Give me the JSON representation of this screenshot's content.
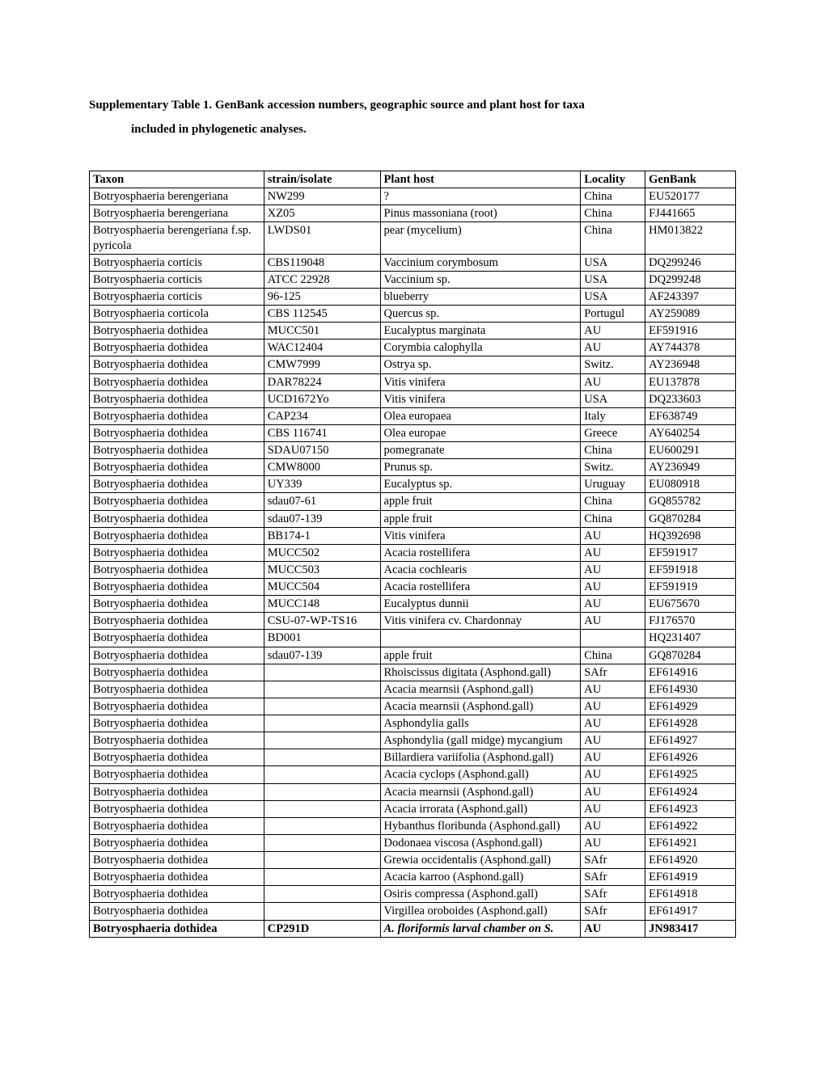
{
  "title_line1": "Supplementary Table 1. GenBank accession numbers, geographic source and plant host for taxa",
  "title_line2": "included in phylogenetic analyses.",
  "headers": {
    "taxon": "Taxon",
    "strain": "strain/isolate",
    "host": "Plant host",
    "locality": "Locality",
    "genbank": "GenBank"
  },
  "rows": [
    {
      "taxon": "Botryosphaeria berengeriana",
      "strain": "NW299",
      "host": "?",
      "locality": "China",
      "genbank": "EU520177"
    },
    {
      "taxon": "Botryosphaeria berengeriana",
      "strain": "XZ05",
      "host": "Pinus massoniana (root)",
      "locality": "China",
      "genbank": "FJ441665"
    },
    {
      "taxon": "Botryosphaeria berengeriana f.sp. pyricola",
      "strain": "LWDS01",
      "host": "pear (mycelium)",
      "locality": "China",
      "genbank": "HM013822"
    },
    {
      "taxon": "Botryosphaeria corticis",
      "strain": "CBS119048",
      "host": "Vaccinium corymbosum",
      "locality": "USA",
      "genbank": "DQ299246"
    },
    {
      "taxon": "Botryosphaeria corticis",
      "strain": "ATCC 22928",
      "host": "Vaccinium sp.",
      "locality": "USA",
      "genbank": "DQ299248"
    },
    {
      "taxon": "Botryosphaeria corticis",
      "strain": "96-125",
      "host": "blueberry",
      "locality": "USA",
      "genbank": "AF243397"
    },
    {
      "taxon": "Botryosphaeria corticola",
      "strain": "CBS 112545",
      "host": "Quercus sp.",
      "locality": "Portugul",
      "genbank": "AY259089"
    },
    {
      "taxon": "Botryosphaeria dothidea",
      "strain": "MUCC501",
      "host": "Eucalyptus marginata",
      "locality": "AU",
      "genbank": "EF591916"
    },
    {
      "taxon": "Botryosphaeria dothidea",
      "strain": "WAC12404",
      "host": "Corymbia calophylla",
      "locality": "AU",
      "genbank": "AY744378"
    },
    {
      "taxon": "Botryosphaeria dothidea",
      "strain": "CMW7999",
      "host": "Ostrya sp.",
      "locality": "Switz.",
      "genbank": "AY236948"
    },
    {
      "taxon": "Botryosphaeria dothidea",
      "strain": "DAR78224",
      "host": "Vitis vinifera",
      "locality": "AU",
      "genbank": "EU137878"
    },
    {
      "taxon": "Botryosphaeria dothidea",
      "strain": "UCD1672Yo",
      "host": "Vitis vinifera",
      "locality": "USA",
      "genbank": "DQ233603"
    },
    {
      "taxon": "Botryosphaeria dothidea",
      "strain": "CAP234",
      "host": "Olea europaea",
      "locality": "Italy",
      "genbank": "EF638749"
    },
    {
      "taxon": "Botryosphaeria dothidea",
      "strain": "CBS 116741",
      "host": "Olea europae",
      "locality": "Greece",
      "genbank": "AY640254"
    },
    {
      "taxon": "Botryosphaeria dothidea",
      "strain": "SDAU07150",
      "host": "pomegranate",
      "locality": "China",
      "genbank": "EU600291"
    },
    {
      "taxon": "Botryosphaeria dothidea",
      "strain": "CMW8000",
      "host": "Prunus sp.",
      "locality": "Switz.",
      "genbank": "AY236949"
    },
    {
      "taxon": "Botryosphaeria dothidea",
      "strain": "UY339",
      "host": "Eucalyptus sp.",
      "locality": "Uruguay",
      "genbank": "EU080918"
    },
    {
      "taxon": "Botryosphaeria dothidea",
      "strain": "sdau07-61",
      "host": "apple fruit",
      "locality": "China",
      "genbank": "GQ855782"
    },
    {
      "taxon": "Botryosphaeria dothidea",
      "strain": "sdau07-139",
      "host": "apple fruit",
      "locality": "China",
      "genbank": "GQ870284"
    },
    {
      "taxon": "Botryosphaeria dothidea",
      "strain": "BB174-1",
      "host": "Vitis vinifera",
      "locality": "AU",
      "genbank": "HQ392698"
    },
    {
      "taxon": "Botryosphaeria dothidea",
      "strain": "MUCC502",
      "host": "Acacia rostellifera",
      "locality": "AU",
      "genbank": "EF591917"
    },
    {
      "taxon": "Botryosphaeria dothidea",
      "strain": "MUCC503",
      "host": "Acacia cochlearis",
      "locality": "AU",
      "genbank": "EF591918"
    },
    {
      "taxon": "Botryosphaeria dothidea",
      "strain": "MUCC504",
      "host": "Acacia rostellifera",
      "locality": "AU",
      "genbank": "EF591919"
    },
    {
      "taxon": "Botryosphaeria dothidea",
      "strain": "MUCC148",
      "host": "Eucalyptus dunnii",
      "locality": "AU",
      "genbank": "EU675670"
    },
    {
      "taxon": "Botryosphaeria dothidea",
      "strain": "CSU-07-WP-TS16",
      "host": "Vitis vinifera cv. Chardonnay",
      "locality": "AU",
      "genbank": "FJ176570"
    },
    {
      "taxon": "Botryosphaeria dothidea",
      "strain": "BD001",
      "host": "",
      "locality": "",
      "genbank": "HQ231407"
    },
    {
      "taxon": "Botryosphaeria dothidea",
      "strain": "sdau07-139",
      "host": "apple fruit",
      "locality": "China",
      "genbank": "GQ870284"
    },
    {
      "taxon": "Botryosphaeria dothidea",
      "strain": "",
      "host": "Rhoiscissus digitata (Asphond.gall)",
      "locality": "SAfr",
      "genbank": "EF614916"
    },
    {
      "taxon": "Botryosphaeria dothidea",
      "strain": "",
      "host": "Acacia mearnsii (Asphond.gall)",
      "locality": "AU",
      "genbank": "EF614930"
    },
    {
      "taxon": "Botryosphaeria dothidea",
      "strain": "",
      "host": "Acacia mearnsii (Asphond.gall)",
      "locality": "AU",
      "genbank": "EF614929"
    },
    {
      "taxon": "Botryosphaeria dothidea",
      "strain": "",
      "host": "Asphondylia galls",
      "locality": "AU",
      "genbank": "EF614928"
    },
    {
      "taxon": "Botryosphaeria dothidea",
      "strain": "",
      "host": "Asphondylia (gall midge) mycangium",
      "locality": "AU",
      "genbank": "EF614927"
    },
    {
      "taxon": "Botryosphaeria dothidea",
      "strain": "",
      "host": "Billardiera variifolia (Asphond.gall)",
      "locality": "AU",
      "genbank": "EF614926"
    },
    {
      "taxon": "Botryosphaeria dothidea",
      "strain": "",
      "host": "Acacia cyclops (Asphond.gall)",
      "locality": "AU",
      "genbank": "EF614925"
    },
    {
      "taxon": "Botryosphaeria dothidea",
      "strain": "",
      "host": "Acacia mearnsii (Asphond.gall)",
      "locality": "AU",
      "genbank": "EF614924"
    },
    {
      "taxon": "Botryosphaeria dothidea",
      "strain": "",
      "host": "Acacia irrorata (Asphond.gall)",
      "locality": "AU",
      "genbank": "EF614923"
    },
    {
      "taxon": "Botryosphaeria dothidea",
      "strain": "",
      "host": "Hybanthus floribunda (Asphond.gall)",
      "locality": "AU",
      "genbank": "EF614922"
    },
    {
      "taxon": "Botryosphaeria dothidea",
      "strain": "",
      "host": "Dodonaea viscosa (Asphond.gall)",
      "locality": "AU",
      "genbank": "EF614921"
    },
    {
      "taxon": "Botryosphaeria dothidea",
      "strain": "",
      "host": "Grewia occidentalis (Asphond.gall)",
      "locality": "SAfr",
      "genbank": "EF614920"
    },
    {
      "taxon": "Botryosphaeria dothidea",
      "strain": "",
      "host": "Acacia karroo (Asphond.gall)",
      "locality": "SAfr",
      "genbank": "EF614919"
    },
    {
      "taxon": "Botryosphaeria dothidea",
      "strain": "",
      "host": "Osiris compressa (Asphond.gall)",
      "locality": "SAfr",
      "genbank": "EF614918"
    },
    {
      "taxon": "Botryosphaeria dothidea",
      "strain": "",
      "host": "Virgillea oroboides (Asphond.gall)",
      "locality": "SAfr",
      "genbank": "EF614917"
    },
    {
      "taxon": "Botryosphaeria dothidea",
      "strain": "CP291D",
      "host": "A. floriformis larval chamber on S.",
      "locality": "AU",
      "genbank": "JN983417",
      "bold": true,
      "host_italic": true
    }
  ]
}
